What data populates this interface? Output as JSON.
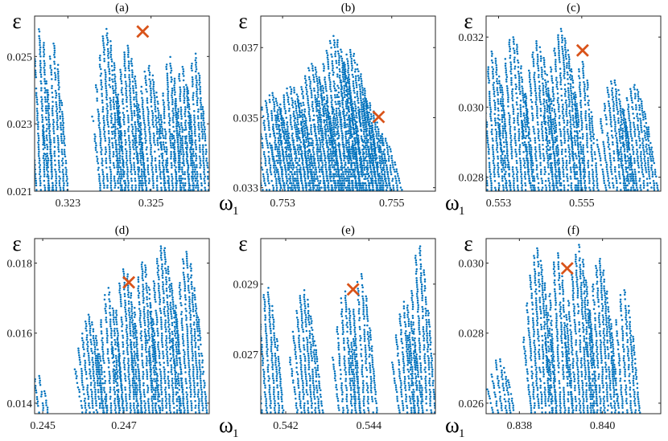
{
  "figure": {
    "style": {
      "point_color": "#0072BD",
      "marker_color": "#D95319"
    }
  },
  "chart_data": [
    {
      "type": "scatter",
      "title": "(a)",
      "xlabel": "ω",
      "xlabel_sub": "1",
      "ylabel": "ε",
      "xlim": [
        0.3222,
        0.3264
      ],
      "ylim": [
        0.021,
        0.0262
      ],
      "xticks": [
        0.323,
        0.325
      ],
      "xtick_labels": [
        "0.323",
        "0.325"
      ],
      "yticks": [
        0.021,
        0.023,
        0.025
      ],
      "ytick_labels": [
        "0.021",
        "0.023",
        "0.025"
      ],
      "marker": {
        "x": 0.3248,
        "y": 0.02574
      },
      "bands": [
        {
          "x0": 0.32225,
          "x1": 0.32265,
          "ytop": 0.026
        },
        {
          "x0": 0.32255,
          "x1": 0.323,
          "ytop": 0.0255
        },
        {
          "x0": 0.3238,
          "x1": 0.3244,
          "ytop": 0.0259
        },
        {
          "x0": 0.3243,
          "x1": 0.3249,
          "ytop": 0.0254
        },
        {
          "x0": 0.3248,
          "x1": 0.32545,
          "ytop": 0.0248
        },
        {
          "x0": 0.32535,
          "x1": 0.3258,
          "ytop": 0.0251
        },
        {
          "x0": 0.32565,
          "x1": 0.3261,
          "ytop": 0.0248
        },
        {
          "x0": 0.32595,
          "x1": 0.3264,
          "ytop": 0.0252
        }
      ]
    },
    {
      "type": "scatter",
      "title": "(b)",
      "xlabel": "ω",
      "xlabel_sub": "1",
      "ylabel": "ε",
      "xlim": [
        0.7526,
        0.7558
      ],
      "ylim": [
        0.0329,
        0.0379
      ],
      "xticks": [
        0.753,
        0.755
      ],
      "xtick_labels": [
        "0.753",
        "0.755"
      ],
      "yticks": [
        0.033,
        0.035,
        0.037
      ],
      "ytick_labels": [
        "0.033",
        "0.035",
        "0.037"
      ],
      "marker": {
        "x": 0.75476,
        "y": 0.03502
      },
      "bands": [
        {
          "x0": 0.75265,
          "x1": 0.7533,
          "ytop": 0.0358
        },
        {
          "x0": 0.753,
          "x1": 0.7537,
          "ytop": 0.036
        },
        {
          "x0": 0.7534,
          "x1": 0.7541,
          "ytop": 0.0366
        },
        {
          "x0": 0.7538,
          "x1": 0.7545,
          "ytop": 0.0374
        },
        {
          "x0": 0.7541,
          "x1": 0.7548,
          "ytop": 0.037
        },
        {
          "x0": 0.7544,
          "x1": 0.755,
          "ytop": 0.0356
        },
        {
          "x0": 0.7547,
          "x1": 0.7552,
          "ytop": 0.0346
        }
      ]
    },
    {
      "type": "scatter",
      "title": "(c)",
      "xlabel": "ω",
      "xlabel_sub": "1",
      "ylabel": "ε",
      "xlim": [
        0.5527,
        0.5569
      ],
      "ylim": [
        0.0276,
        0.0326
      ],
      "xticks": [
        0.553,
        0.555
      ],
      "xtick_labels": [
        "0.553",
        "0.555"
      ],
      "yticks": [
        0.028,
        0.03,
        0.032
      ],
      "ytick_labels": [
        "0.028",
        "0.030",
        "0.032"
      ],
      "marker": {
        "x": 0.55502,
        "y": 0.03162
      },
      "bands": [
        {
          "x0": 0.55275,
          "x1": 0.5533,
          "ytop": 0.0317
        },
        {
          "x0": 0.5532,
          "x1": 0.55385,
          "ytop": 0.0322
        },
        {
          "x0": 0.5538,
          "x1": 0.5545,
          "ytop": 0.032
        },
        {
          "x0": 0.55435,
          "x1": 0.5551,
          "ytop": 0.0323
        },
        {
          "x0": 0.5549,
          "x1": 0.5554,
          "ytop": 0.0314
        },
        {
          "x0": 0.5556,
          "x1": 0.5563,
          "ytop": 0.0309
        },
        {
          "x0": 0.5561,
          "x1": 0.55685,
          "ytop": 0.0307
        }
      ]
    },
    {
      "type": "scatter",
      "title": "(d)",
      "xlabel": "ω",
      "xlabel_sub": "1",
      "ylabel": "ε",
      "xlim": [
        0.2448,
        0.2491
      ],
      "ylim": [
        0.0137,
        0.0187
      ],
      "xticks": [
        0.245,
        0.247
      ],
      "xtick_labels": [
        "0.245",
        "0.247"
      ],
      "yticks": [
        0.014,
        0.016,
        0.018
      ],
      "ytick_labels": [
        "0.014",
        "0.016",
        "0.018"
      ],
      "marker": {
        "x": 0.24712,
        "y": 0.01745
      },
      "bands": [
        {
          "x0": 0.2448,
          "x1": 0.24515,
          "ytop": 0.0149
        },
        {
          "x0": 0.246,
          "x1": 0.2466,
          "ytop": 0.0166
        },
        {
          "x0": 0.2465,
          "x1": 0.247,
          "ytop": 0.0174
        },
        {
          "x0": 0.2469,
          "x1": 0.24745,
          "ytop": 0.018
        },
        {
          "x0": 0.24735,
          "x1": 0.2479,
          "ytop": 0.0182
        },
        {
          "x0": 0.2478,
          "x1": 0.2485,
          "ytop": 0.0186
        },
        {
          "x0": 0.2484,
          "x1": 0.24905,
          "ytop": 0.0184
        }
      ]
    },
    {
      "type": "scatter",
      "title": "(e)",
      "xlabel": "ω",
      "xlabel_sub": "1",
      "ylabel": "ε",
      "xlim": [
        0.5414,
        0.5456
      ],
      "ylim": [
        0.0253,
        0.0303
      ],
      "xticks": [
        0.542,
        0.544
      ],
      "xtick_labels": [
        "0.542",
        "0.544"
      ],
      "yticks": [
        0.027,
        0.029
      ],
      "ytick_labels": [
        "0.027",
        "0.029"
      ],
      "marker": {
        "x": 0.54362,
        "y": 0.02885
      },
      "bands": [
        {
          "x0": 0.54145,
          "x1": 0.54195,
          "ytop": 0.029
        },
        {
          "x0": 0.5423,
          "x1": 0.5429,
          "ytop": 0.0289
        },
        {
          "x0": 0.5433,
          "x1": 0.5438,
          "ytop": 0.0289
        },
        {
          "x0": 0.5437,
          "x1": 0.5442,
          "ytop": 0.0294
        },
        {
          "x0": 0.54475,
          "x1": 0.5453,
          "ytop": 0.0286
        },
        {
          "x0": 0.5451,
          "x1": 0.5456,
          "ytop": 0.0302
        }
      ]
    },
    {
      "type": "scatter",
      "title": "(f)",
      "xlabel": "ω",
      "xlabel_sub": "1",
      "ylabel": "ε",
      "xlim": [
        0.8372,
        0.8414
      ],
      "ylim": [
        0.0257,
        0.0307
      ],
      "xticks": [
        0.838,
        0.84
      ],
      "xtick_labels": [
        "0.838",
        "0.840"
      ],
      "yticks": [
        0.026,
        0.028,
        0.03
      ],
      "ytick_labels": [
        "0.026",
        "0.028",
        "0.030"
      ],
      "marker": {
        "x": 0.83915,
        "y": 0.02985
      },
      "bands": [
        {
          "x0": 0.8374,
          "x1": 0.8379,
          "ytop": 0.0274
        },
        {
          "x0": 0.8383,
          "x1": 0.8389,
          "ytop": 0.0305
        },
        {
          "x0": 0.8388,
          "x1": 0.8393,
          "ytop": 0.0304
        },
        {
          "x0": 0.8393,
          "x1": 0.8399,
          "ytop": 0.0306
        },
        {
          "x0": 0.8398,
          "x1": 0.8404,
          "ytop": 0.0302
        },
        {
          "x0": 0.8404,
          "x1": 0.8409,
          "ytop": 0.0294
        }
      ]
    }
  ]
}
